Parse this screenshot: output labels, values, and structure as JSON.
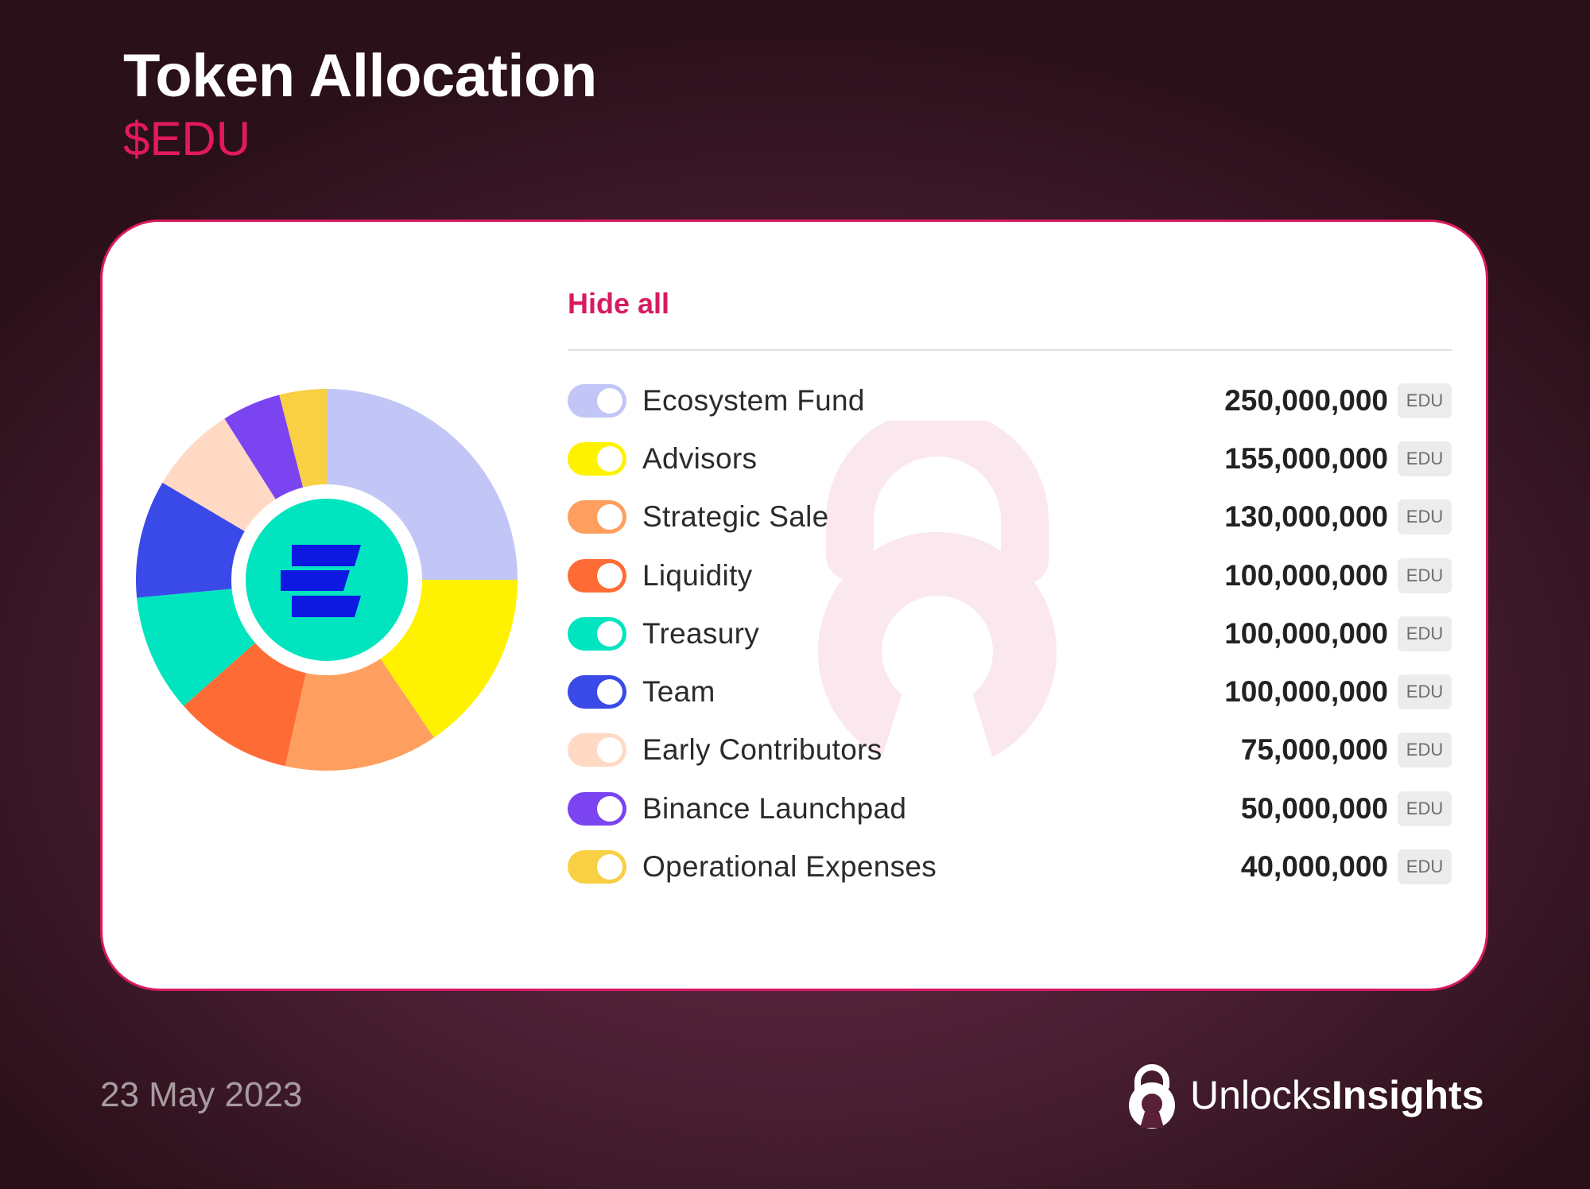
{
  "header": {
    "title": "Token Allocation",
    "subtitle": "$EDU"
  },
  "legend": {
    "hide_all_label": "Hide all"
  },
  "chart_data": {
    "type": "pie",
    "unit": "EDU",
    "categories": [
      "Ecosystem Fund",
      "Advisors",
      "Strategic Sale",
      "Liquidity",
      "Treasury",
      "Team",
      "Early Contributors",
      "Binance Launchpad",
      "Operational Expenses"
    ],
    "values": [
      250000000,
      155000000,
      130000000,
      100000000,
      100000000,
      100000000,
      75000000,
      50000000,
      40000000
    ],
    "display_values": [
      "250,000,000",
      "155,000,000",
      "130,000,000",
      "100,000,000",
      "100,000,000",
      "100,000,000",
      "75,000,000",
      "50,000,000",
      "40,000,000"
    ],
    "colors": [
      "#c1c6f6",
      "#fff200",
      "#ff9f5f",
      "#ff6b35",
      "#00e5bf",
      "#3a4ae8",
      "#ffd9c4",
      "#7b44f1",
      "#f9cf44"
    ],
    "center_logo_color": "#00e5bf",
    "inner_radius_ratio": 0.5,
    "legend_placement": "right"
  },
  "footer": {
    "date": "23 May 2023",
    "brand_light": "Unlocks",
    "brand_bold": "Insights",
    "brand_icon": "lock-icon"
  }
}
